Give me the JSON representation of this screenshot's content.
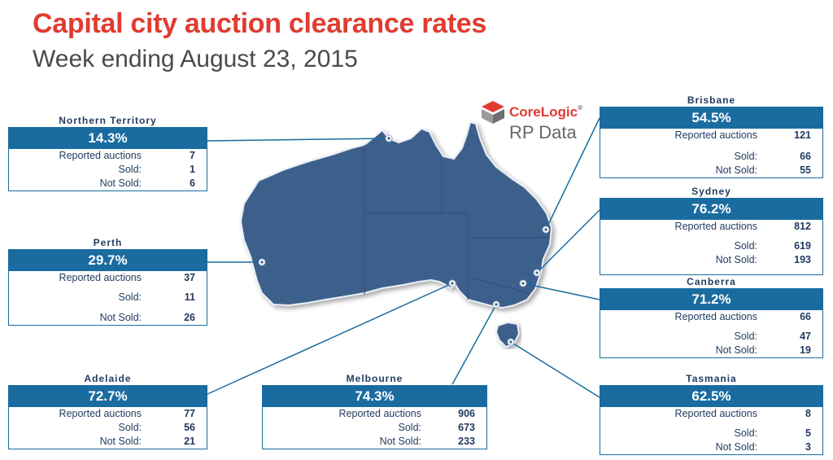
{
  "title": "Capital city auction clearance rates",
  "subtitle": "Week ending August 23, 2015",
  "logo": {
    "brand": "CoreLogic",
    "tm": "®",
    "product": "RP Data"
  },
  "labels": {
    "reported": "Reported auctions",
    "sold": "Sold:",
    "not_sold": "Not Sold:"
  },
  "colors": {
    "title": "#e03c31",
    "panel": "#1a6ca0",
    "land": "#3d5f8c"
  },
  "regions": [
    {
      "id": "northern-territory",
      "name": "Northern Territory",
      "rate": "14.3%",
      "reported": "7",
      "sold": "1",
      "not_sold": "6"
    },
    {
      "id": "perth",
      "name": "Perth",
      "rate": "29.7%",
      "reported": "37",
      "sold": "11",
      "not_sold": "26"
    },
    {
      "id": "adelaide",
      "name": "Adelaide",
      "rate": "72.7%",
      "reported": "77",
      "sold": "56",
      "not_sold": "21"
    },
    {
      "id": "melbourne",
      "name": "Melbourne",
      "rate": "74.3%",
      "reported": "906",
      "sold": "673",
      "not_sold": "233"
    },
    {
      "id": "brisbane",
      "name": "Brisbane",
      "rate": "54.5%",
      "reported": "121",
      "sold": "66",
      "not_sold": "55"
    },
    {
      "id": "sydney",
      "name": "Sydney",
      "rate": "76.2%",
      "reported": "812",
      "sold": "619",
      "not_sold": "193"
    },
    {
      "id": "canberra",
      "name": "Canberra",
      "rate": "71.2%",
      "reported": "66",
      "sold": "47",
      "not_sold": "19"
    },
    {
      "id": "tasmania",
      "name": "Tasmania",
      "rate": "62.5%",
      "reported": "8",
      "sold": "5",
      "not_sold": "3"
    }
  ]
}
